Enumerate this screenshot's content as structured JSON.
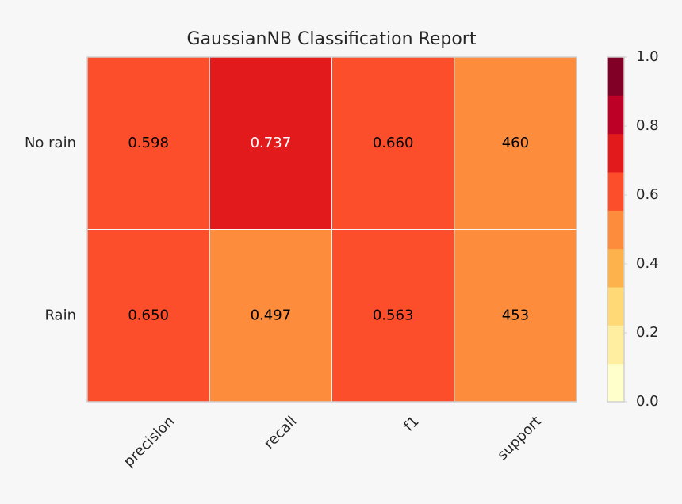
{
  "chart_data": {
    "type": "heatmap",
    "title": "GaussianNB Classification Report",
    "rows": [
      "No rain",
      "Rain"
    ],
    "columns": [
      "precision",
      "recall",
      "f1",
      "support"
    ],
    "values": [
      [
        0.598,
        0.737,
        0.66,
        460
      ],
      [
        0.65,
        0.497,
        0.563,
        453
      ]
    ],
    "value_labels": [
      [
        "0.598",
        "0.737",
        "0.660",
        "460"
      ],
      [
        "0.650",
        "0.497",
        "0.563",
        "453"
      ]
    ],
    "cell_colors": [
      [
        "#fc4e2a",
        "#e31a1c",
        "#fc4e2a",
        "#fd8d3c"
      ],
      [
        "#fc4e2a",
        "#fd8d3c",
        "#fc4e2a",
        "#fd8d3c"
      ]
    ],
    "colormap": [
      "#ffffcc",
      "#ffeda0",
      "#fed976",
      "#feb24c",
      "#fd8d3c",
      "#fc4e2a",
      "#e31a1c",
      "#bd0026",
      "#800026"
    ],
    "clim": [
      0,
      1
    ],
    "cticks": [
      {
        "value": 0,
        "label": "0.0"
      },
      0.2,
      0.4,
      0.6,
      0.8,
      {
        "value": 1,
        "label": "1.0"
      }
    ]
  }
}
